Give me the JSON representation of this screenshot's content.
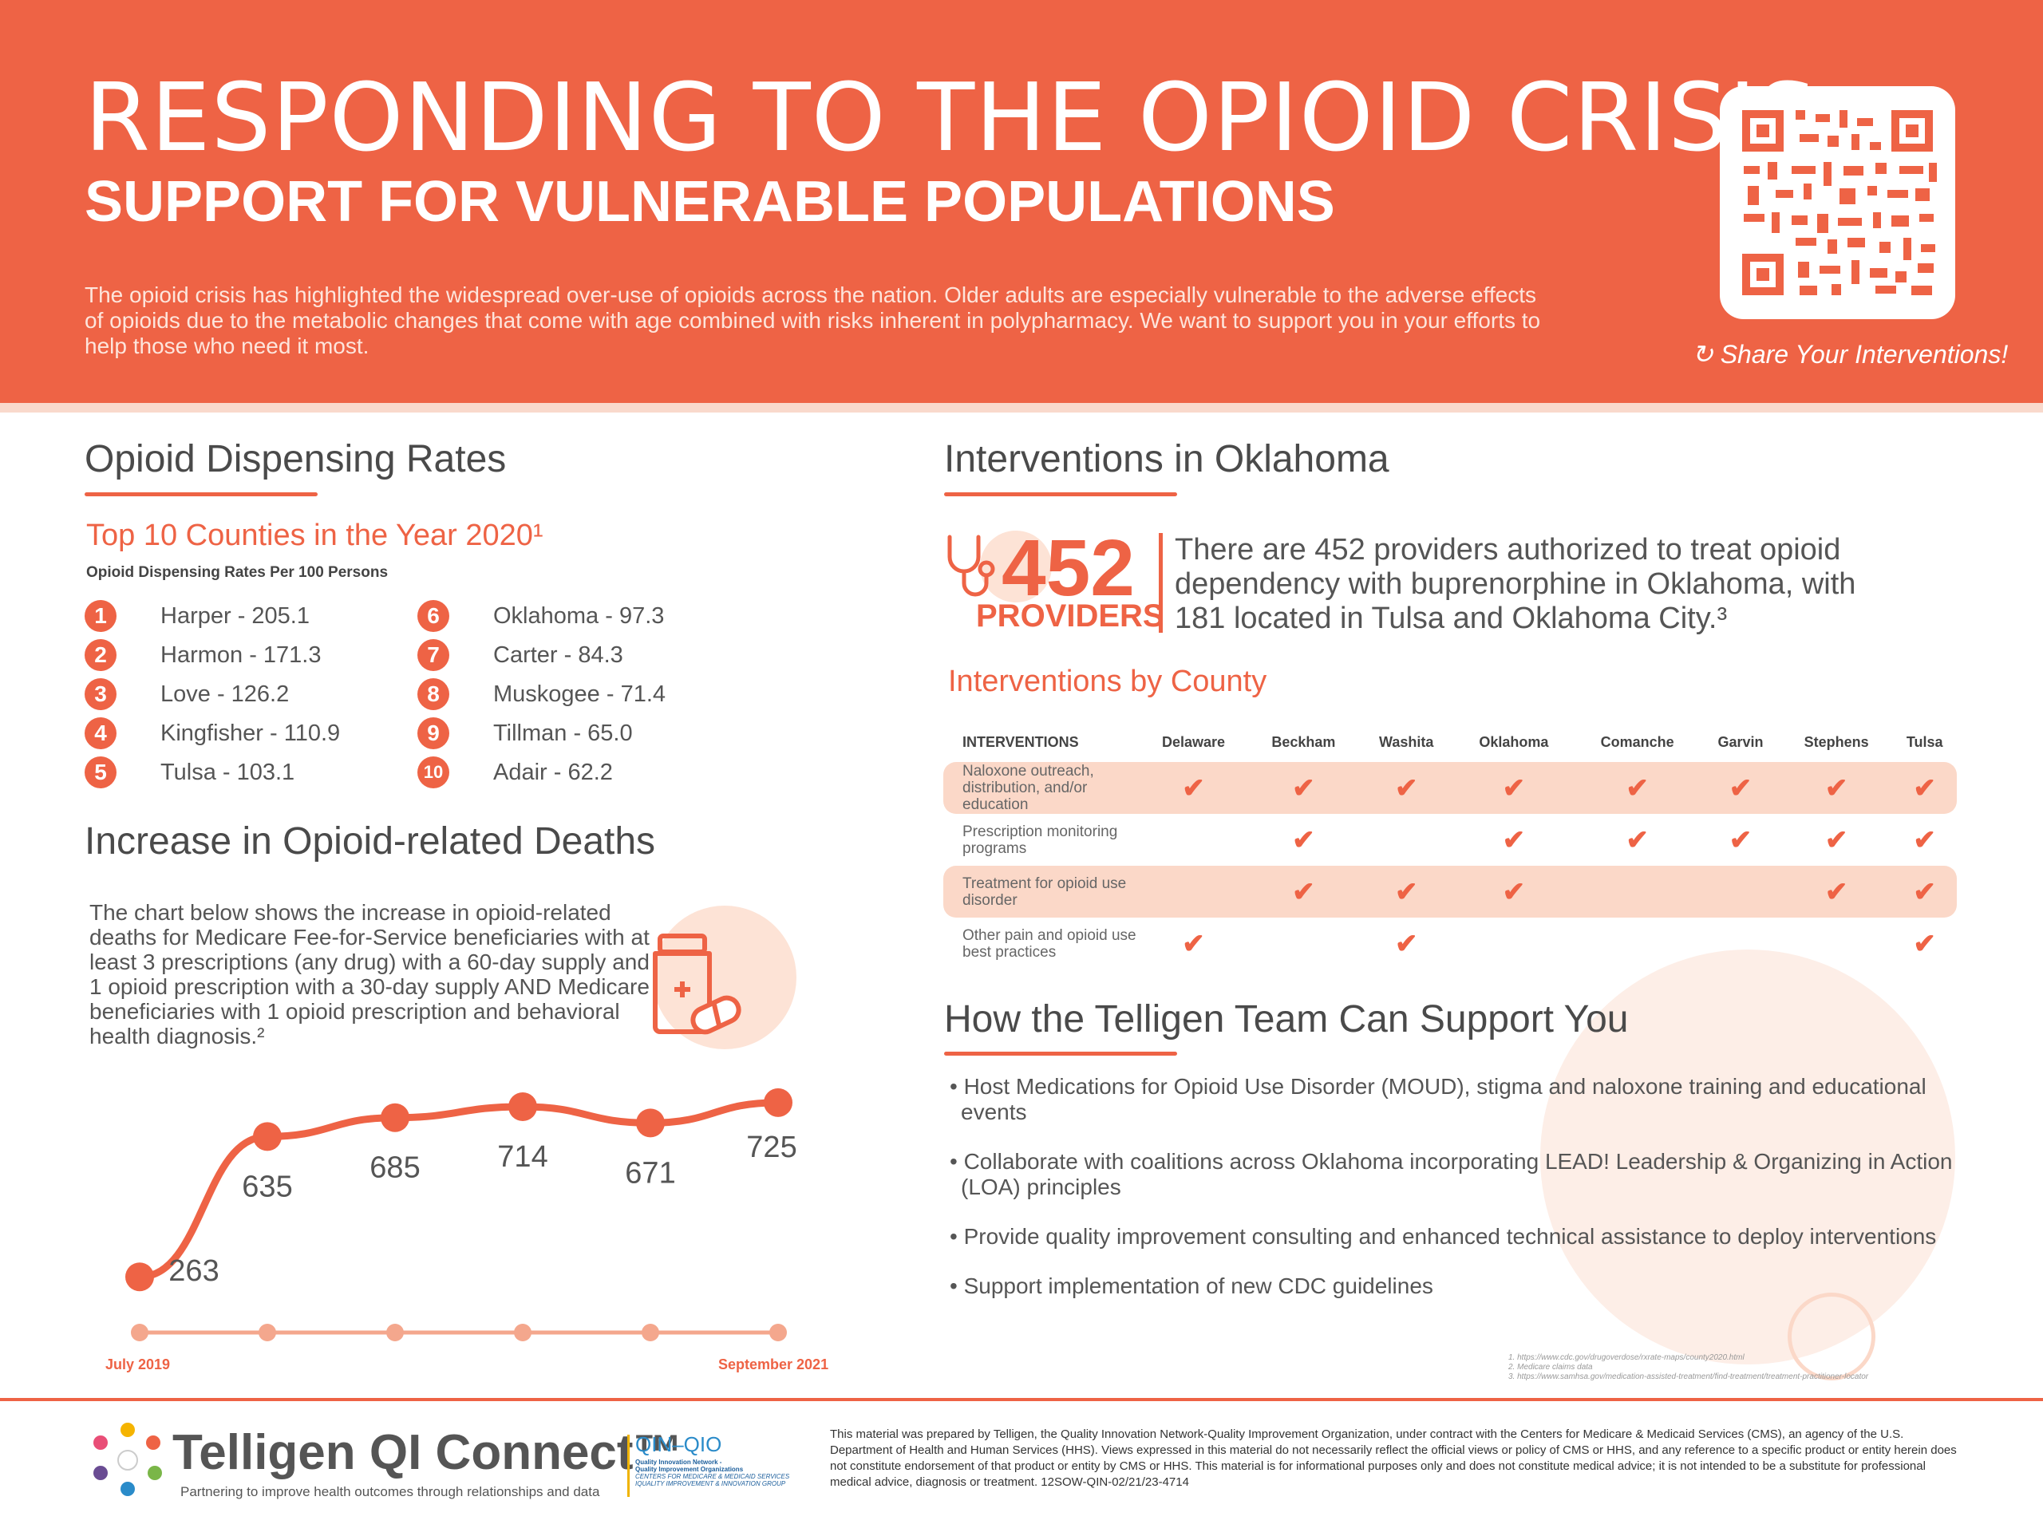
{
  "header": {
    "title": "RESPONDING TO THE OPIOID CRISIS",
    "subtitle": "SUPPORT FOR VULNERABLE POPULATIONS",
    "intro": "The opioid crisis has highlighted the widespread over-use of opioids across the nation. Older adults are especially vulnerable to the adverse effects of opioids due to the metabolic changes that come with age combined with risks inherent in polypharmacy. We want to support you in your efforts to help those who need it most.",
    "share": "Share Your Interventions!"
  },
  "dispensing": {
    "heading": "Opioid Dispensing Rates",
    "subheading": "Top 10 Counties in the Year 2020¹",
    "caption": "Opioid Dispensing Rates Per 100 Persons",
    "counties": [
      {
        "num": "1",
        "label": "Harper - 205.1"
      },
      {
        "num": "2",
        "label": "Harmon - 171.3"
      },
      {
        "num": "3",
        "label": "Love - 126.2"
      },
      {
        "num": "4",
        "label": "Kingfisher - 110.9"
      },
      {
        "num": "5",
        "label": "Tulsa - 103.1"
      },
      {
        "num": "6",
        "label": "Oklahoma - 97.3"
      },
      {
        "num": "7",
        "label": "Carter - 84.3"
      },
      {
        "num": "8",
        "label": "Muskogee - 71.4"
      },
      {
        "num": "9",
        "label": "Tillman - 65.0"
      },
      {
        "num": "10",
        "label": "Adair - 62.2"
      }
    ]
  },
  "deaths": {
    "heading": "Increase in Opioid-related Deaths",
    "text": "The chart below shows the increase in opioid-related deaths for Medicare Fee-for-Service beneficiaries with at least 3 prescriptions (any drug) with a 60-day supply and 1 opioid prescription with a 30-day supply AND Medicare beneficiaries with 1 opioid prescription and behavioral health diagnosis.²",
    "start_label": "July 2019",
    "end_label": "September 2021"
  },
  "chart_data": {
    "type": "line",
    "values": [
      263,
      635,
      685,
      714,
      671,
      725
    ],
    "value_labels": [
      "263",
      "635",
      "685",
      "714",
      "671",
      "725"
    ],
    "x_labels": [
      "July 2019",
      "September 2021"
    ],
    "ylim": [
      200,
      750
    ]
  },
  "interventions": {
    "heading": "Interventions in Oklahoma",
    "big_number": "452",
    "big_label": "PROVIDERS",
    "description": "There are 452 providers authorized to treat opioid dependency with buprenorphine in Oklahoma, with 181 located in Tulsa and Oklahoma City.³",
    "table_heading": "Interventions by County",
    "columns": [
      "INTERVENTIONS",
      "Delaware",
      "Beckham",
      "Washita",
      "Oklahoma",
      "Comanche",
      "Garvin",
      "Stephens",
      "Tulsa"
    ],
    "rows": [
      {
        "label": "Naloxone outreach, distribution, and/or education",
        "checks": [
          true,
          true,
          true,
          true,
          true,
          true,
          true,
          true
        ]
      },
      {
        "label": "Prescription monitoring programs",
        "checks": [
          false,
          true,
          false,
          true,
          true,
          true,
          true,
          true
        ]
      },
      {
        "label": "Treatment for opioid use disorder",
        "checks": [
          false,
          true,
          true,
          true,
          false,
          false,
          true,
          true
        ]
      },
      {
        "label": "Other pain and opioid use best practices",
        "checks": [
          true,
          false,
          true,
          false,
          false,
          false,
          false,
          true
        ]
      }
    ],
    "check_mark": "✔"
  },
  "support": {
    "heading": "How the Telligen Team Can Support You",
    "items": [
      "• Host Medications for Opioid Use Disorder (MOUD), stigma and naloxone training and  educational events",
      "• Collaborate with coalitions across Oklahoma incorporating LEAD! Leadership & Organizing in Action (LOA) principles",
      "• Provide quality improvement consulting and enhanced technical assistance to deploy interventions",
      "• Support implementation of new CDC guidelines"
    ],
    "refs": [
      "1. https://www.cdc.gov/drugoverdose/rxrate-maps/county2020.html",
      "2. Medicare claims data",
      "3. https://www.samhsa.gov/medication-assisted-treatment/find-treatment/treatment-practitioner-locator"
    ]
  },
  "footer": {
    "logo": "Telligen QI Connect™",
    "tagline": "Partnering to improve health outcomes through relationships and data",
    "qin_title": "QIN–QIO",
    "qin_lines": [
      "Quality Innovation Network -",
      "Quality Improvement Organizations",
      "CENTERS FOR MEDICARE & MEDICAID SERVICES",
      "IQUALITY IMPROVEMENT & INNOVATION GROUP"
    ],
    "disclaimer": "This material was prepared by Telligen, the Quality Innovation Network-Quality Improvement Organization, under contract with the Centers for Medicare & Medicaid Services (CMS), an agency of the U.S. Department of Health and Human Services (HHS). Views expressed in this material do not necessarily reflect the official views or policy of CMS or HHS, and any reference to a specific product or entity herein does not constitute endorsement of that product or entity by CMS or HHS. This material is for informational purposes only and does not constitute medical advice; it is not intended to be a substitute for professional medical advice, diagnosis or treatment. 12SOW-QIN-02/21/23-4714"
  },
  "colors": {
    "accent": "#ee6345",
    "light": "#fbd8c8"
  }
}
